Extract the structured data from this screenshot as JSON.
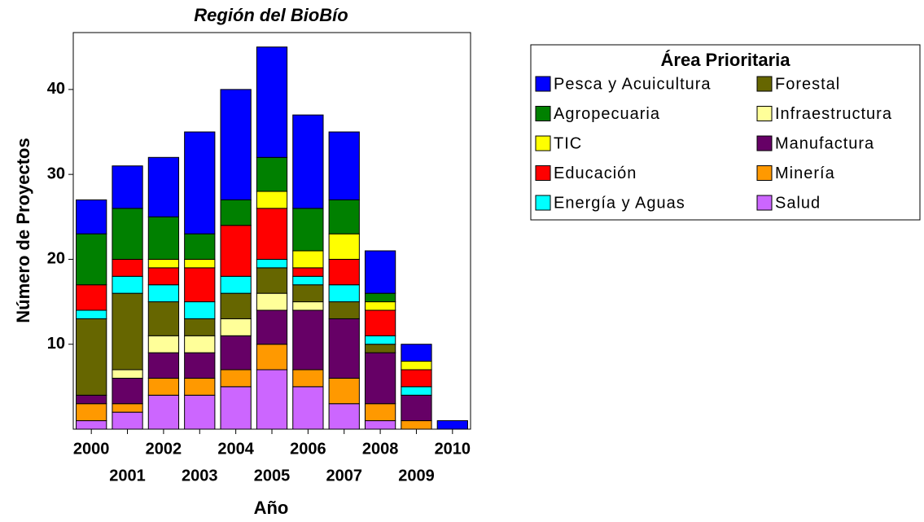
{
  "chart_data": {
    "type": "stacked_bar",
    "title": "Región del BioBío",
    "x_label": "Año",
    "y_label": "Número de Proyectos",
    "legend_title": "Área Prioritaria",
    "categories": [
      "2000",
      "2001",
      "2002",
      "2003",
      "2004",
      "2005",
      "2006",
      "2007",
      "2008",
      "2009",
      "2010"
    ],
    "series": [
      {
        "name": "Salud",
        "color": "#cc66ff",
        "values": [
          1,
          2,
          4,
          4,
          5,
          7,
          5,
          3,
          1,
          0,
          0
        ]
      },
      {
        "name": "Minería",
        "color": "#ff9900",
        "values": [
          2,
          1,
          2,
          2,
          2,
          3,
          2,
          3,
          2,
          1,
          0
        ]
      },
      {
        "name": "Manufactura",
        "color": "#660066",
        "values": [
          1,
          3,
          3,
          3,
          4,
          4,
          7,
          7,
          6,
          3,
          0
        ]
      },
      {
        "name": "Infraestructura",
        "color": "#ffff99",
        "values": [
          0,
          1,
          2,
          2,
          2,
          2,
          1,
          0,
          0,
          0,
          0
        ]
      },
      {
        "name": "Forestal",
        "color": "#666600",
        "values": [
          9,
          9,
          4,
          2,
          3,
          3,
          2,
          2,
          1,
          0,
          0
        ]
      },
      {
        "name": "Energía y Aguas",
        "color": "#00ffff",
        "values": [
          1,
          2,
          2,
          2,
          2,
          1,
          1,
          2,
          1,
          1,
          0
        ]
      },
      {
        "name": "Educación",
        "color": "#ff0000",
        "values": [
          3,
          2,
          2,
          4,
          6,
          6,
          1,
          3,
          3,
          2,
          0
        ]
      },
      {
        "name": "TIC",
        "color": "#ffff00",
        "values": [
          0,
          0,
          1,
          1,
          0,
          2,
          2,
          3,
          1,
          1,
          0
        ]
      },
      {
        "name": "Agropecuaria",
        "color": "#008000",
        "values": [
          6,
          6,
          5,
          3,
          3,
          4,
          5,
          4,
          1,
          0,
          0
        ]
      },
      {
        "name": "Pesca y Acuicultura",
        "color": "#0000ff",
        "values": [
          4,
          5,
          7,
          12,
          13,
          13,
          11,
          8,
          5,
          2,
          1
        ]
      }
    ],
    "ylim": [
      0,
      46.7
    ],
    "yticks": [
      10,
      20,
      30,
      40
    ]
  }
}
